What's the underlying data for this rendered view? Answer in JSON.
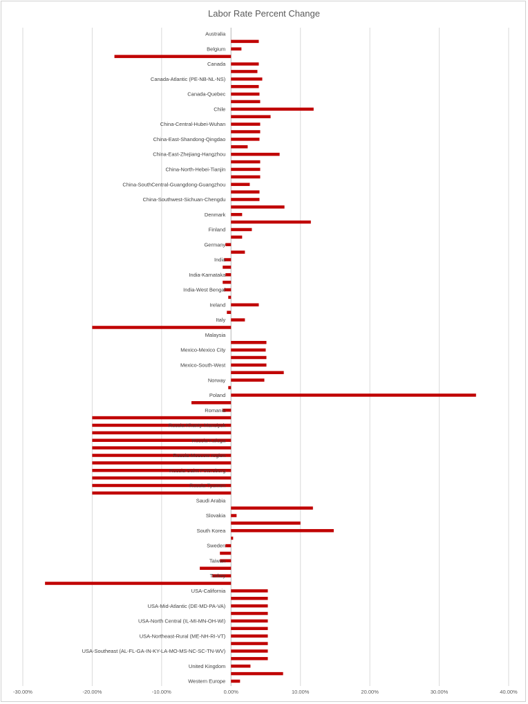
{
  "chart_data": {
    "type": "bar",
    "orientation": "horizontal",
    "title": "Labor Rate Percent Change",
    "xlabel": "",
    "ylabel": "",
    "xlim": [
      -0.3,
      0.4
    ],
    "xticks": [
      -0.3,
      -0.2,
      -0.1,
      0.0,
      0.1,
      0.2,
      0.3,
      0.4
    ],
    "xtick_labels": [
      "-30.00%",
      "-20.00%",
      "-10.00%",
      "0.00%",
      "10.00%",
      "20.00%",
      "30.00%",
      "40.00%"
    ],
    "grid": true,
    "legend": "none",
    "bar_color": "#c00000",
    "categories": [
      "Australia",
      "",
      "Belgium",
      "",
      "Canada",
      "",
      "Canada-Atlantic (PE-NB-NL-NS)",
      "",
      "Canada-Quebec",
      "",
      "Chile",
      "",
      "China-Central-Hubei-Wuhan",
      "",
      "China-East-Shandong-Qingdao",
      "",
      "China-East-Zhejiang-Hangzhou",
      "",
      "China-North-Hebei-Tianjin",
      "",
      "China-SouthCentral-Guangdong-Guangzhou",
      "",
      "China-Southwest-Sichuan-Chengdu",
      "",
      "Denmark",
      "",
      "Finland",
      "",
      "Germany",
      "",
      "India",
      "",
      "India-Karnataka",
      "",
      "India-West Bengal",
      "",
      "Ireland",
      "",
      "Italy",
      "",
      "Malaysia",
      "",
      "Mexico-Mexico City",
      "",
      "Mexico-South-West",
      "",
      "Norway",
      "",
      "Poland",
      "",
      "Romania",
      "",
      "Russia-Khanty-Mansiysk",
      "",
      "Russia-Kaluga",
      "",
      "Russia-Moscow region",
      "",
      "Russia-Saint Petersburg",
      "",
      "Russia-Tyumen",
      "",
      "Saudi Arabia",
      "",
      "Slovakia",
      "",
      "South Korea",
      "",
      "Sweden",
      "",
      "Taiwan",
      "",
      "Turkey",
      "",
      "USA-California",
      "",
      "USA-Mid-Atlantic (DE-MD-PA-VA)",
      "",
      "USA-North Central (IL-MI-MN-OH-WI)",
      "",
      "USA-Northeast-Rural (ME-NH-RI-VT)",
      "",
      "USA-Southeast (AL-FL-GA-IN-KY-LA-MO-MS-NC-SC-TN-WV)",
      "",
      "United Kingdom",
      "",
      "Western Europe"
    ],
    "values": [
      0.0,
      0.04,
      0.015,
      -0.168,
      0.04,
      0.038,
      0.045,
      0.04,
      0.041,
      0.042,
      0.119,
      0.057,
      0.042,
      0.042,
      0.041,
      0.024,
      0.07,
      0.042,
      0.042,
      0.042,
      0.027,
      0.041,
      0.041,
      0.077,
      0.016,
      0.115,
      0.03,
      0.016,
      -0.008,
      0.02,
      -0.01,
      -0.012,
      -0.008,
      -0.012,
      -0.01,
      -0.004,
      0.04,
      -0.006,
      0.02,
      -0.2,
      0.0,
      0.051,
      0.05,
      0.051,
      0.051,
      0.076,
      0.048,
      -0.004,
      0.353,
      -0.057,
      -0.012,
      -0.2,
      -0.2,
      -0.2,
      -0.2,
      -0.2,
      -0.2,
      -0.2,
      -0.2,
      -0.2,
      -0.2,
      -0.2,
      0.0,
      0.118,
      0.008,
      0.1,
      0.148,
      0.003,
      -0.008,
      -0.016,
      -0.016,
      -0.045,
      -0.027,
      -0.268,
      0.053,
      0.053,
      0.053,
      0.053,
      0.053,
      0.053,
      0.053,
      0.053,
      0.053,
      0.053,
      0.028,
      0.075,
      0.013
    ]
  }
}
